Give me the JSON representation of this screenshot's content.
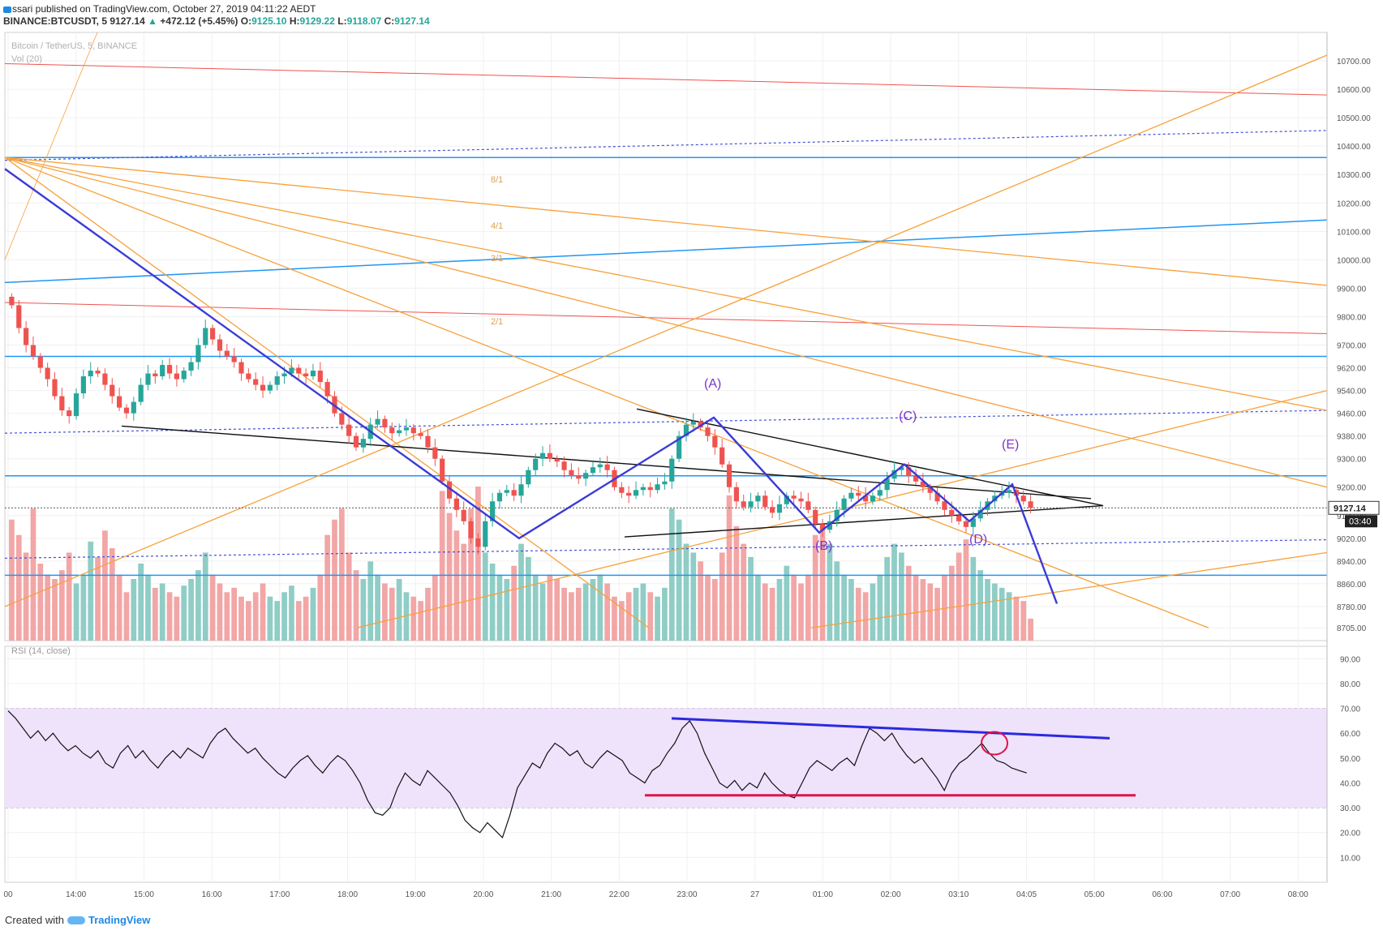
{
  "header": {
    "line1": "ssari published on TradingView.com, October 27, 2019 04:11:22 AEDT",
    "symbol": "BINANCE:BTCUSDT, 5",
    "last": "9127.14",
    "change": "+472.12 (+5.45%)",
    "o_label": "O:",
    "o_value": "9125.10",
    "h_label": "H:",
    "h_value": "9129.22",
    "l_label": "L:",
    "l_value": "9118.07",
    "c_label": "C:",
    "c_value": "9127.14"
  },
  "footer": {
    "created_with": "Created with",
    "brand": "TradingView"
  },
  "colors": {
    "up": "#26a69a",
    "down": "#ef5350",
    "vol_up": "#8fcdc6",
    "vol_down": "#f2a6a6",
    "wave": "#3b3bd6",
    "orange": "#f7a13a",
    "blue_level": "#2196f3",
    "red_fan": "#ef5350",
    "rsi_band": "#efe2fb",
    "rsi_line": "#111111"
  },
  "chart_data": [
    {
      "type": "candlestick",
      "title": "Bitcoin / TetherUS, 5, BINANCE",
      "volume_label": "Vol (20)",
      "ylim": [
        8660,
        10800
      ],
      "y_ticks": [
        "10700.00",
        "10600.00",
        "10500.00",
        "10400.00",
        "10300.00",
        "10200.00",
        "10100.00",
        "10000.00",
        "9900.00",
        "9800.00",
        "9700.00",
        "9620.00",
        "9540.00",
        "9460.00",
        "9380.00",
        "9300.00",
        "9200.00",
        "9100.00",
        "9020.00",
        "8940.00",
        "8860.00",
        "8780.00",
        "8705.00"
      ],
      "x_ticks": [
        "00",
        "14:00",
        "15:00",
        "16:00",
        "17:00",
        "18:00",
        "19:00",
        "20:00",
        "21:00",
        "22:00",
        "23:00",
        "27",
        "01:00",
        "02:00",
        "03:10",
        "04:05",
        "05:00",
        "06:00",
        "07:00",
        "08:00"
      ],
      "price_label": "9127.14",
      "countdown": "03:40",
      "close_series": [
        9840,
        9760,
        9700,
        9660,
        9620,
        9580,
        9520,
        9470,
        9450,
        9530,
        9590,
        9610,
        9600,
        9560,
        9520,
        9480,
        9460,
        9500,
        9560,
        9600,
        9590,
        9630,
        9600,
        9580,
        9610,
        9640,
        9700,
        9760,
        9720,
        9680,
        9660,
        9640,
        9600,
        9580,
        9560,
        9540,
        9560,
        9590,
        9600,
        9620,
        9600,
        9590,
        9610,
        9570,
        9520,
        9460,
        9420,
        9380,
        9340,
        9370,
        9420,
        9440,
        9410,
        9390,
        9400,
        9410,
        9390,
        9380,
        9340,
        9300,
        9220,
        9160,
        9120,
        9080,
        9020,
        8990,
        9080,
        9150,
        9180,
        9190,
        9170,
        9210,
        9260,
        9300,
        9320,
        9300,
        9290,
        9260,
        9240,
        9230,
        9250,
        9270,
        9280,
        9260,
        9200,
        9180,
        9170,
        9190,
        9200,
        9190,
        9210,
        9220,
        9300,
        9380,
        9420,
        9430,
        9410,
        9380,
        9340,
        9280,
        9200,
        9150,
        9130,
        9150,
        9170,
        9130,
        9110,
        9140,
        9170,
        9160,
        9150,
        9120,
        9070,
        9050,
        9080,
        9120,
        9160,
        9180,
        9170,
        9150,
        9170,
        9190,
        9230,
        9260,
        9270,
        9240,
        9220,
        9200,
        9180,
        9150,
        9120,
        9100,
        9080,
        9060,
        9090,
        9120,
        9150,
        9170,
        9180,
        9190,
        9170,
        9150,
        9127
      ],
      "volume_series": [
        55,
        48,
        40,
        60,
        35,
        30,
        28,
        32,
        40,
        26,
        30,
        45,
        38,
        50,
        42,
        30,
        22,
        28,
        35,
        30,
        24,
        26,
        22,
        20,
        25,
        28,
        32,
        40,
        30,
        26,
        22,
        24,
        20,
        18,
        22,
        26,
        20,
        18,
        22,
        25,
        18,
        20,
        24,
        30,
        48,
        55,
        60,
        40,
        32,
        28,
        36,
        30,
        26,
        24,
        28,
        22,
        20,
        18,
        24,
        30,
        68,
        58,
        50,
        44,
        60,
        70,
        40,
        35,
        30,
        28,
        34,
        44,
        38,
        30,
        26,
        30,
        28,
        24,
        22,
        24,
        26,
        28,
        30,
        26,
        20,
        18,
        22,
        24,
        26,
        22,
        20,
        24,
        60,
        55,
        44,
        40,
        36,
        30,
        28,
        40,
        66,
        52,
        44,
        38,
        30,
        26,
        24,
        28,
        34,
        30,
        26,
        30,
        48,
        52,
        44,
        36,
        30,
        28,
        24,
        22,
        26,
        30,
        38,
        44,
        40,
        34,
        30,
        28,
        26,
        24,
        30,
        34,
        40,
        46,
        38,
        32,
        28,
        26,
        24,
        22,
        20,
        18,
        10
      ],
      "annotations": {
        "fan_labels": [
          "8/1",
          "4/1",
          "3/1",
          "2/1"
        ],
        "wave_labels": [
          "(A)",
          "(B)",
          "(C)",
          "(D)",
          "(E)"
        ]
      }
    },
    {
      "type": "line",
      "title": "RSI (14, close)",
      "ylim": [
        0,
        95
      ],
      "y_ticks": [
        "90.00",
        "80.00",
        "70.00",
        "60.00",
        "50.00",
        "40.00",
        "30.00",
        "20.00",
        "10.00"
      ],
      "band": [
        30,
        70
      ],
      "values": [
        69,
        66,
        62,
        58,
        61,
        57,
        60,
        56,
        53,
        55,
        52,
        50,
        53,
        48,
        46,
        52,
        55,
        50,
        53,
        49,
        46,
        50,
        53,
        50,
        54,
        52,
        50,
        56,
        60,
        62,
        58,
        55,
        52,
        54,
        50,
        47,
        44,
        42,
        46,
        49,
        51,
        47,
        44,
        48,
        51,
        49,
        45,
        40,
        33,
        28,
        27,
        30,
        38,
        44,
        41,
        39,
        45,
        42,
        39,
        36,
        31,
        25,
        22,
        20,
        24,
        21,
        18,
        27,
        38,
        43,
        48,
        46,
        52,
        56,
        54,
        51,
        53,
        48,
        46,
        50,
        53,
        51,
        49,
        44,
        42,
        40,
        45,
        47,
        52,
        56,
        62,
        65,
        60,
        52,
        46,
        40,
        38,
        41,
        37,
        40,
        38,
        44,
        40,
        37,
        35,
        34,
        40,
        46,
        49,
        47,
        45,
        48,
        50,
        47,
        55,
        62,
        60,
        57,
        60,
        55,
        51,
        48,
        50,
        46,
        42,
        37,
        44,
        48,
        50,
        53,
        56,
        52,
        49,
        48,
        46,
        45,
        44
      ],
      "annotation_lines": [
        "resistance-descending",
        "support-flat"
      ]
    }
  ]
}
